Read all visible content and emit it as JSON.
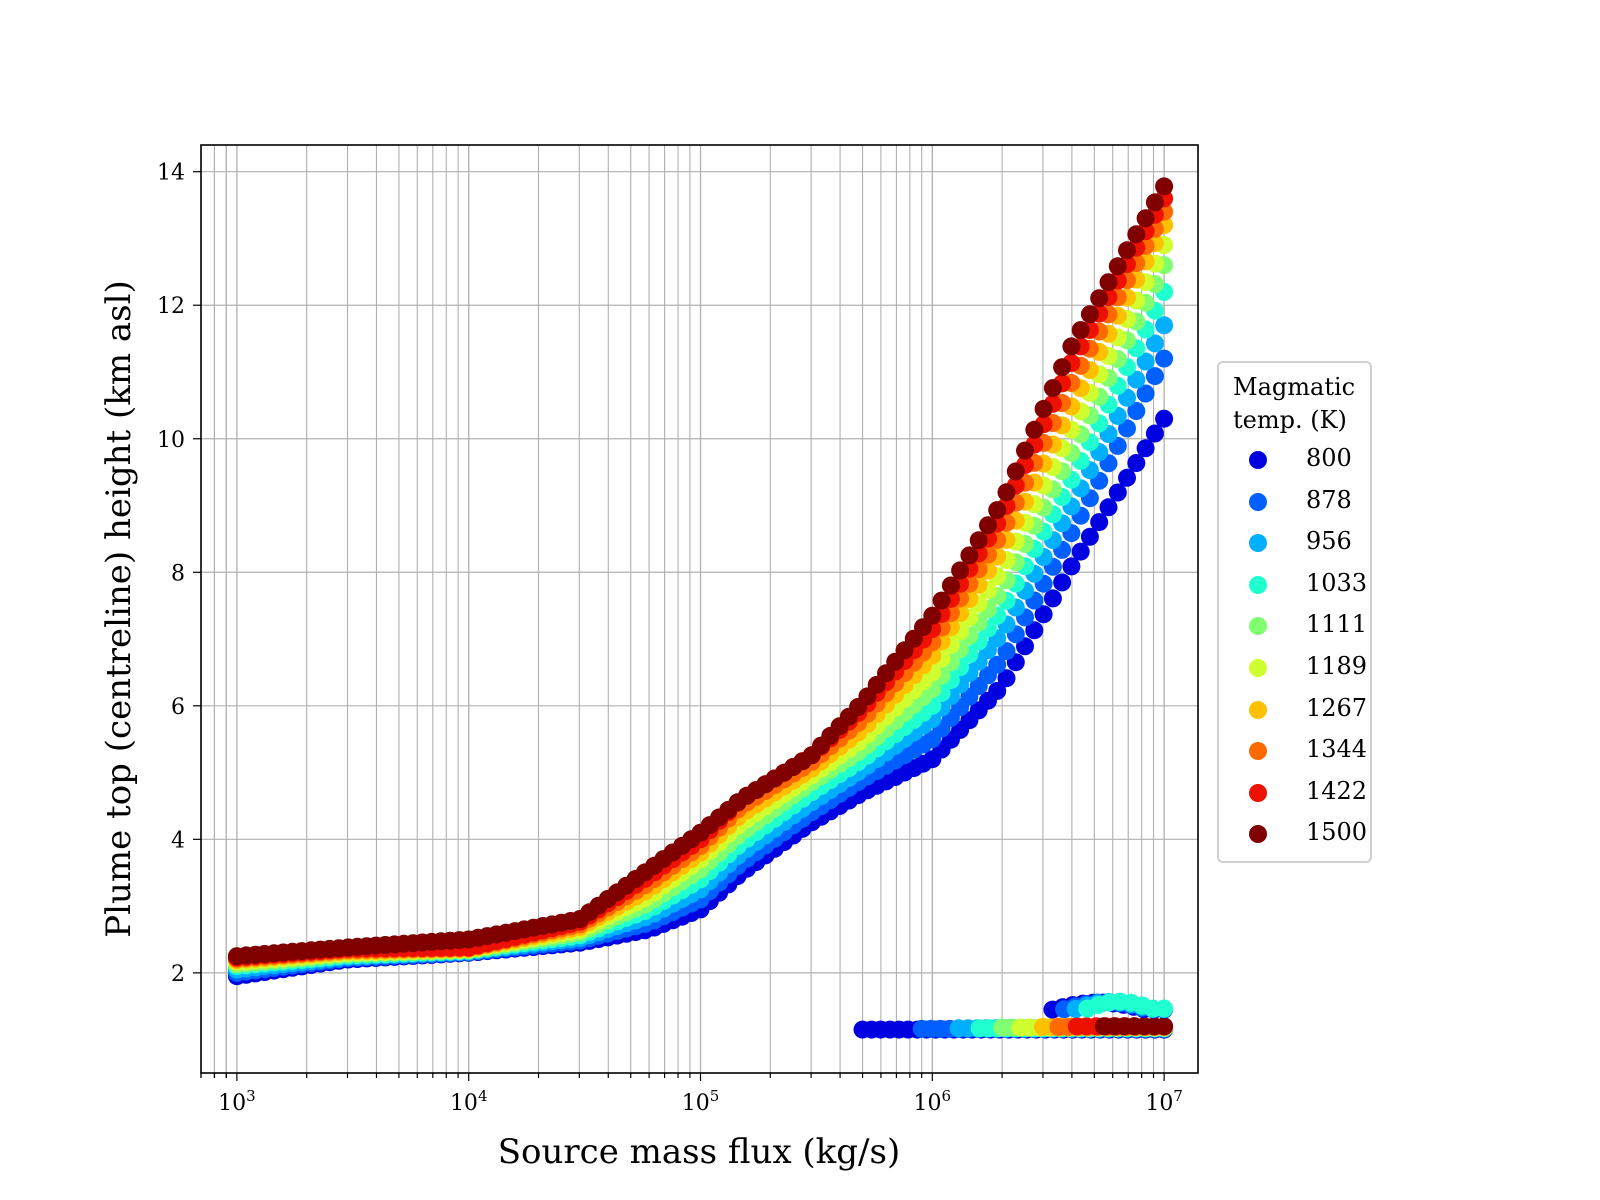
{
  "chart_data": {
    "type": "scatter",
    "title": "",
    "xlabel": "Source mass flux (kg/s)",
    "ylabel": "Plume top (centreline) height (km asl)",
    "xscale": "log",
    "xlim": [
      700,
      14000000
    ],
    "ylim": [
      0.5,
      14.4
    ],
    "grid": true,
    "xticks": [
      {
        "base": "10",
        "exp": "3"
      },
      {
        "base": "10",
        "exp": "4"
      },
      {
        "base": "10",
        "exp": "5"
      },
      {
        "base": "10",
        "exp": "6"
      },
      {
        "base": "10",
        "exp": "7"
      }
    ],
    "yticks": [
      "2",
      "4",
      "6",
      "8",
      "10",
      "12",
      "14"
    ],
    "legend": {
      "title_line1": "Magmatic",
      "title_line2": "temp. (K)",
      "placement": "right, outside plot"
    },
    "series": [
      {
        "name": "800",
        "color": "#0000e0",
        "main": [
          [
            1000,
            1.95
          ],
          [
            3000,
            2.2
          ],
          [
            10000,
            2.3
          ],
          [
            30000,
            2.45
          ],
          [
            60000,
            2.65
          ],
          [
            100000,
            2.95
          ],
          [
            150000,
            3.5
          ],
          [
            300000,
            4.25
          ],
          [
            500000,
            4.7
          ],
          [
            1000000,
            5.2
          ],
          [
            2000000,
            6.3
          ],
          [
            4000000,
            8.1
          ],
          [
            10000000,
            10.3
          ]
        ],
        "branch_lo": 500000,
        "branch_hi": 10000000,
        "branch_y": 1.15
      },
      {
        "name": "878",
        "color": "#0060ff",
        "main": [
          [
            1000,
            2.0
          ],
          [
            3000,
            2.22
          ],
          [
            10000,
            2.31
          ],
          [
            30000,
            2.48
          ],
          [
            60000,
            2.75
          ],
          [
            100000,
            3.1
          ],
          [
            150000,
            3.65
          ],
          [
            300000,
            4.4
          ],
          [
            500000,
            4.9
          ],
          [
            1000000,
            5.5
          ],
          [
            2000000,
            6.7
          ],
          [
            4000000,
            8.6
          ],
          [
            10000000,
            11.2
          ]
        ],
        "branch_lo": 900000,
        "branch_hi": 10000000,
        "branch_y": 1.16
      },
      {
        "name": "956",
        "color": "#00b0ff",
        "main": [
          [
            1000,
            2.05
          ],
          [
            3000,
            2.24
          ],
          [
            10000,
            2.32
          ],
          [
            30000,
            2.52
          ],
          [
            60000,
            2.85
          ],
          [
            100000,
            3.25
          ],
          [
            150000,
            3.8
          ],
          [
            300000,
            4.55
          ],
          [
            500000,
            5.05
          ],
          [
            1000000,
            5.8
          ],
          [
            2000000,
            7.1
          ],
          [
            4000000,
            9.0
          ],
          [
            10000000,
            11.7
          ]
        ],
        "branch_lo": 1300000,
        "branch_hi": 10000000,
        "branch_y": 1.17
      },
      {
        "name": "1033",
        "color": "#20ffd0",
        "main": [
          [
            1000,
            2.1
          ],
          [
            3000,
            2.26
          ],
          [
            10000,
            2.33
          ],
          [
            30000,
            2.56
          ],
          [
            60000,
            2.95
          ],
          [
            100000,
            3.4
          ],
          [
            150000,
            3.95
          ],
          [
            300000,
            4.7
          ],
          [
            500000,
            5.2
          ],
          [
            1000000,
            6.0
          ],
          [
            2000000,
            7.45
          ],
          [
            4000000,
            9.4
          ],
          [
            10000000,
            12.2
          ]
        ],
        "branch_lo": 1600000,
        "branch_hi": 10000000,
        "branch_y": 1.17
      },
      {
        "name": "1111",
        "color": "#80ff70",
        "main": [
          [
            1000,
            2.13
          ],
          [
            3000,
            2.28
          ],
          [
            10000,
            2.34
          ],
          [
            30000,
            2.6
          ],
          [
            60000,
            3.05
          ],
          [
            100000,
            3.55
          ],
          [
            150000,
            4.1
          ],
          [
            300000,
            4.85
          ],
          [
            500000,
            5.35
          ],
          [
            1000000,
            6.25
          ],
          [
            2000000,
            7.75
          ],
          [
            4000000,
            9.8
          ],
          [
            10000000,
            12.6
          ]
        ],
        "branch_lo": 2000000,
        "branch_hi": 10000000,
        "branch_y": 1.18
      },
      {
        "name": "1189",
        "color": "#d0ff30",
        "main": [
          [
            1000,
            2.16
          ],
          [
            3000,
            2.3
          ],
          [
            10000,
            2.35
          ],
          [
            30000,
            2.64
          ],
          [
            60000,
            3.15
          ],
          [
            100000,
            3.7
          ],
          [
            150000,
            4.25
          ],
          [
            300000,
            4.95
          ],
          [
            500000,
            5.5
          ],
          [
            1000000,
            6.5
          ],
          [
            2000000,
            8.05
          ],
          [
            4000000,
            10.15
          ],
          [
            10000000,
            12.9
          ]
        ],
        "branch_lo": 2400000,
        "branch_hi": 10000000,
        "branch_y": 1.18
      },
      {
        "name": "1267",
        "color": "#ffc000",
        "main": [
          [
            1000,
            2.19
          ],
          [
            3000,
            2.32
          ],
          [
            10000,
            2.36
          ],
          [
            30000,
            2.68
          ],
          [
            60000,
            3.25
          ],
          [
            100000,
            3.8
          ],
          [
            150000,
            4.38
          ],
          [
            300000,
            5.05
          ],
          [
            500000,
            5.65
          ],
          [
            1000000,
            6.75
          ],
          [
            2000000,
            8.35
          ],
          [
            4000000,
            10.5
          ],
          [
            10000000,
            13.2
          ]
        ],
        "branch_lo": 3000000,
        "branch_hi": 10000000,
        "branch_y": 1.19
      },
      {
        "name": "1344",
        "color": "#ff6a00",
        "main": [
          [
            1000,
            2.21
          ],
          [
            3000,
            2.34
          ],
          [
            10000,
            2.37
          ],
          [
            30000,
            2.72
          ],
          [
            60000,
            3.35
          ],
          [
            100000,
            3.9
          ],
          [
            150000,
            4.5
          ],
          [
            300000,
            5.15
          ],
          [
            500000,
            5.8
          ],
          [
            1000000,
            6.95
          ],
          [
            2000000,
            8.6
          ],
          [
            4000000,
            10.85
          ],
          [
            10000000,
            13.4
          ]
        ],
        "branch_lo": 3500000,
        "branch_hi": 10000000,
        "branch_y": 1.19
      },
      {
        "name": "1422",
        "color": "#ee1000",
        "main": [
          [
            1000,
            2.23
          ],
          [
            3000,
            2.36
          ],
          [
            10000,
            2.38
          ],
          [
            30000,
            2.76
          ],
          [
            60000,
            3.45
          ],
          [
            100000,
            4.0
          ],
          [
            150000,
            4.6
          ],
          [
            300000,
            5.25
          ],
          [
            500000,
            5.95
          ],
          [
            1000000,
            7.15
          ],
          [
            2000000,
            8.85
          ],
          [
            4000000,
            11.15
          ],
          [
            10000000,
            13.6
          ]
        ],
        "branch_lo": 4200000,
        "branch_hi": 10000000,
        "branch_y": 1.2
      },
      {
        "name": "1500",
        "color": "#800000",
        "main": [
          [
            1000,
            2.25
          ],
          [
            3000,
            2.38
          ],
          [
            10000,
            2.5
          ],
          [
            30000,
            2.8
          ],
          [
            60000,
            3.55
          ],
          [
            100000,
            4.1
          ],
          [
            150000,
            4.6
          ],
          [
            300000,
            5.25
          ],
          [
            500000,
            6.05
          ],
          [
            1000000,
            7.35
          ],
          [
            2000000,
            9.05
          ],
          [
            4000000,
            11.4
          ],
          [
            10000000,
            13.78
          ]
        ],
        "branch_lo": 5500000,
        "branch_hi": 10000000,
        "branch_y": 1.2
      }
    ],
    "upper_branch": {
      "x_lo": 3300000,
      "x_hi": 10000000,
      "y_lo": 1.45,
      "y_hi": 1.6,
      "colors": [
        "#0000e0",
        "#0060ff",
        "#00b0ff",
        "#20ffd0"
      ]
    }
  }
}
